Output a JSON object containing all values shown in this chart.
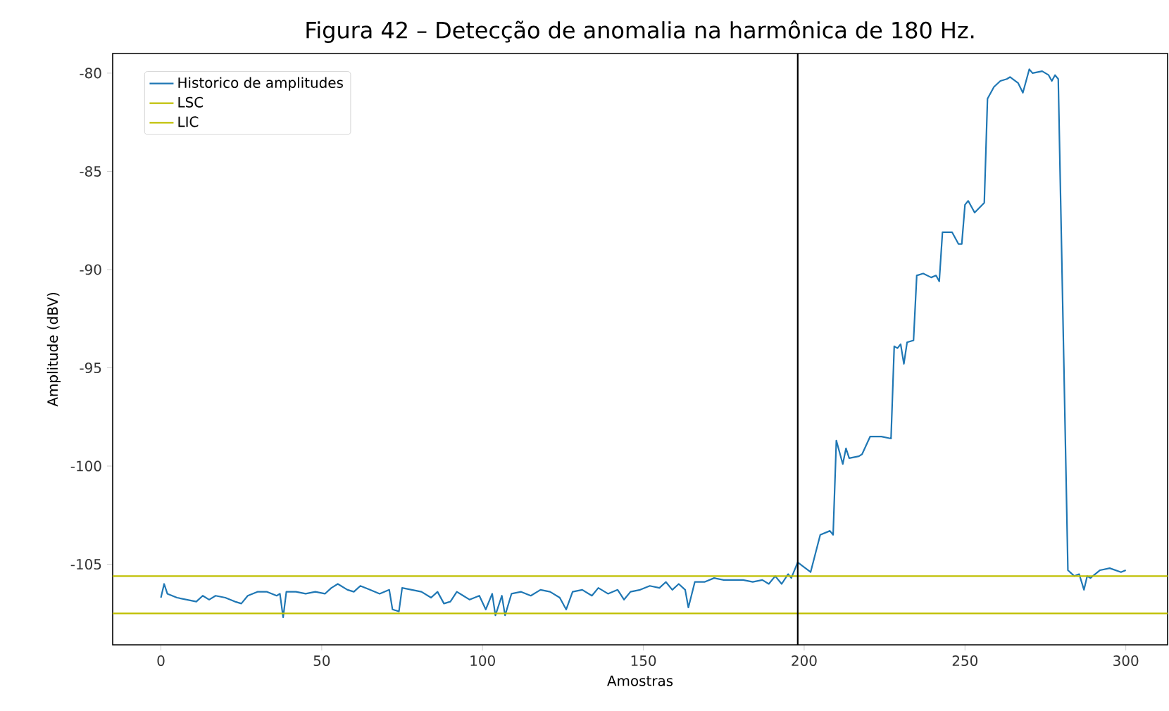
{
  "chart_data": {
    "type": "line",
    "title": "Figura 42 – Detecção de anomalia na harmônica de 180 Hz.",
    "xlabel": "Amostras",
    "ylabel": "Amplitude (dBV)",
    "xlim": [
      -15,
      313
    ],
    "ylim": [
      -109.1,
      -79
    ],
    "xticks": [
      0,
      50,
      100,
      150,
      200,
      250,
      300
    ],
    "yticks": [
      -105,
      -100,
      -95,
      -90,
      -85,
      -80
    ],
    "legend": "top left",
    "series": [
      {
        "name": "Historico de amplitudes",
        "color": "#1f77b4",
        "x": [
          0,
          1,
          2,
          5,
          8,
          11,
          13,
          15,
          17,
          20,
          23,
          25,
          27,
          30,
          33,
          36,
          37,
          38,
          39,
          42,
          45,
          48,
          51,
          53,
          55,
          58,
          60,
          62,
          65,
          68,
          71,
          72,
          74,
          75,
          78,
          81,
          84,
          86,
          88,
          90,
          92,
          94,
          96,
          99,
          101,
          103,
          104,
          106,
          107,
          109,
          112,
          115,
          118,
          121,
          124,
          126,
          128,
          131,
          134,
          136,
          139,
          142,
          144,
          146,
          149,
          152,
          155,
          157,
          159,
          161,
          163,
          164,
          166,
          169,
          172,
          175,
          178,
          181,
          184,
          187,
          189,
          191,
          193,
          195,
          196,
          197,
          198,
          202,
          205,
          208,
          209,
          210,
          212,
          213,
          214,
          217,
          218,
          220.5,
          224,
          227,
          228,
          229,
          230,
          231,
          232,
          234,
          235,
          237,
          239.5,
          241,
          242,
          243,
          246,
          248,
          249,
          250,
          251,
          253,
          256,
          257,
          259,
          261,
          263,
          264,
          266.5,
          268,
          270,
          271,
          274,
          276,
          277,
          278,
          279,
          282,
          284,
          285.5,
          287,
          288,
          289,
          292,
          295,
          298.5,
          300
        ],
        "values": [
          -106.7,
          -106.0,
          -106.5,
          -106.7,
          -106.8,
          -106.9,
          -106.6,
          -106.8,
          -106.6,
          -106.7,
          -106.9,
          -107.0,
          -106.6,
          -106.4,
          -106.4,
          -106.6,
          -106.5,
          -107.7,
          -106.4,
          -106.4,
          -106.5,
          -106.4,
          -106.5,
          -106.2,
          -106.0,
          -106.3,
          -106.4,
          -106.1,
          -106.3,
          -106.5,
          -106.3,
          -107.3,
          -107.4,
          -106.2,
          -106.3,
          -106.4,
          -106.7,
          -106.4,
          -107.0,
          -106.9,
          -106.4,
          -106.6,
          -106.8,
          -106.6,
          -107.3,
          -106.5,
          -107.6,
          -106.6,
          -107.6,
          -106.5,
          -106.4,
          -106.6,
          -106.3,
          -106.4,
          -106.7,
          -107.3,
          -106.4,
          -106.3,
          -106.6,
          -106.2,
          -106.5,
          -106.3,
          -106.8,
          -106.4,
          -106.3,
          -106.1,
          -106.2,
          -105.9,
          -106.3,
          -106.0,
          -106.3,
          -107.2,
          -105.9,
          -105.9,
          -105.7,
          -105.8,
          -105.8,
          -105.8,
          -105.9,
          -105.8,
          -106.0,
          -105.6,
          -106.0,
          -105.5,
          -105.7,
          -105.3,
          -104.9,
          -105.4,
          -103.5,
          -103.3,
          -103.5,
          -98.7,
          -99.9,
          -99.1,
          -99.6,
          -99.5,
          -99.4,
          -98.5,
          -98.5,
          -98.6,
          -93.9,
          -94.0,
          -93.8,
          -94.8,
          -93.7,
          -93.6,
          -90.3,
          -90.2,
          -90.4,
          -90.3,
          -90.6,
          -88.1,
          -88.1,
          -88.7,
          -88.7,
          -86.7,
          -86.5,
          -87.1,
          -86.6,
          -81.3,
          -80.7,
          -80.4,
          -80.3,
          -80.2,
          -80.5,
          -81.0,
          -79.8,
          -80.0,
          -79.9,
          -80.1,
          -80.4,
          -80.1,
          -80.3,
          -105.3,
          -105.6,
          -105.5,
          -106.3,
          -105.6,
          -105.7,
          -105.3,
          -105.2,
          -105.4,
          -105.3
        ]
      }
    ],
    "ref_lines": [
      {
        "axis": "y",
        "value": -105.6,
        "label": "LSC",
        "color": "#bfbf00"
      },
      {
        "axis": "y",
        "value": -107.5,
        "label": "LIC",
        "color": "#bfbf00"
      },
      {
        "axis": "x",
        "value": 198,
        "color": "#000000"
      }
    ]
  }
}
